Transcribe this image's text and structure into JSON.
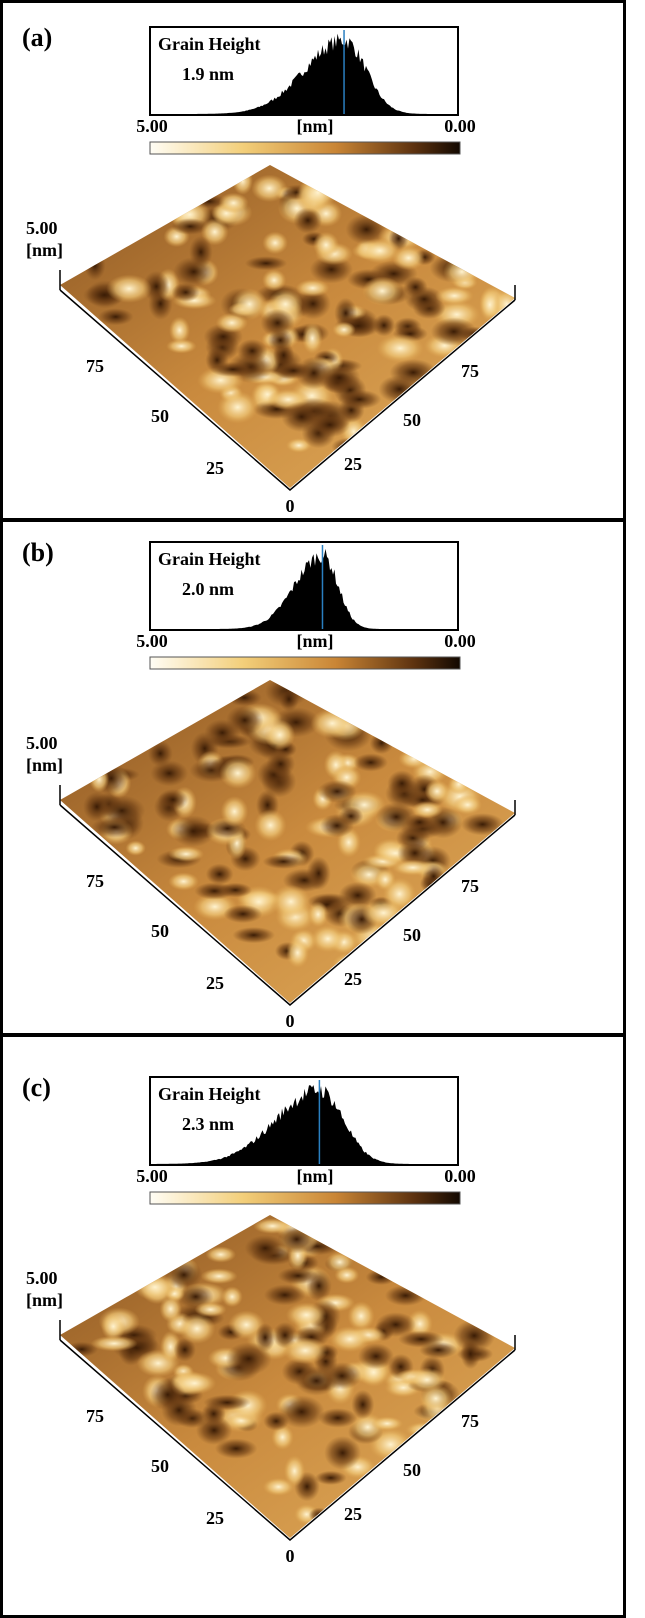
{
  "panels": [
    {
      "label": "(a)",
      "inset": {
        "title": "Grain Height",
        "value": "1.9 nm"
      },
      "color_scale": {
        "left": "5.00",
        "unit": "[nm]",
        "right": "0.00"
      },
      "z_axis": {
        "max": "5.00",
        "unit": "[nm]"
      },
      "left_axis_ticks": [
        "75",
        "50",
        "25"
      ],
      "origin": "0",
      "right_axis_ticks": [
        "25",
        "50",
        "75"
      ]
    },
    {
      "label": "(b)",
      "inset": {
        "title": "Grain Height",
        "value": "2.0 nm"
      },
      "color_scale": {
        "left": "5.00",
        "unit": "[nm]",
        "right": "0.00"
      },
      "z_axis": {
        "max": "5.00",
        "unit": "[nm]"
      },
      "left_axis_ticks": [
        "75",
        "50",
        "25"
      ],
      "origin": "0",
      "right_axis_ticks": [
        "25",
        "50",
        "75"
      ]
    },
    {
      "label": "(c)",
      "inset": {
        "title": "Grain Height",
        "value": "2.3 nm"
      },
      "color_scale": {
        "left": "5.00",
        "unit": "[nm]",
        "right": "0.00"
      },
      "z_axis": {
        "max": "5.00",
        "unit": "[nm]"
      },
      "left_axis_ticks": [
        "75",
        "50",
        "25"
      ],
      "origin": "0",
      "right_axis_ticks": [
        "25",
        "50",
        "75"
      ]
    }
  ]
}
